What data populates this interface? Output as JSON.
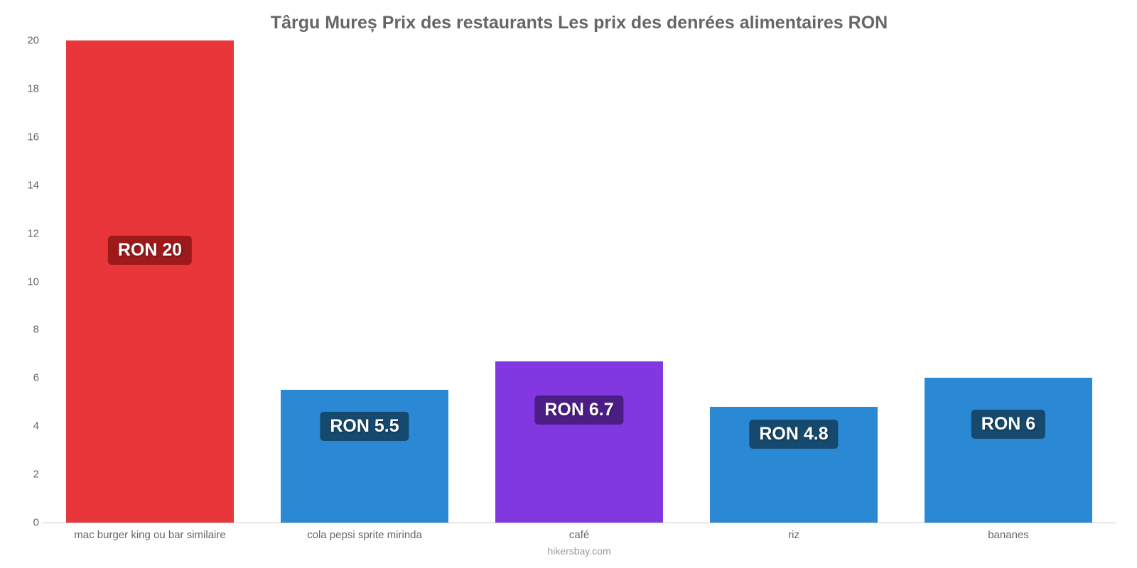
{
  "chart": {
    "type": "bar",
    "title": "Târgu Mureș Prix des restaurants Les prix des denrées alimentaires RON",
    "title_fontsize": 25,
    "title_color": "#666666",
    "ylim": [
      0,
      20
    ],
    "yticks": [
      0,
      2,
      4,
      6,
      8,
      10,
      12,
      14,
      16,
      18,
      20
    ],
    "ytick_fontsize": 15,
    "ytick_color": "#666666",
    "xlabel_fontsize": 15,
    "xlabel_color": "#666666",
    "background_color": "#ffffff",
    "axis_line_color": "#cccccc",
    "bar_width_pct": 78,
    "label_fontsize": 25,
    "label_text_color": "#ffffff",
    "label_radius": 5,
    "footer": "hikersbay.com",
    "footer_color": "#999999",
    "bars": [
      {
        "category": "mac burger king ou bar similaire",
        "value": 20,
        "color": "#e8363a",
        "label": "RON 20",
        "label_bg": "#9e1a1a",
        "label_y": 11.2
      },
      {
        "category": "cola pepsi sprite mirinda",
        "value": 5.5,
        "color": "#2a88d5",
        "label": "RON 5.5",
        "label_bg": "#16496e",
        "label_y": 3.9
      },
      {
        "category": "café",
        "value": 6.7,
        "color": "#8138e0",
        "label": "RON 6.7",
        "label_bg": "#4b1e85",
        "label_y": 4.6
      },
      {
        "category": "riz",
        "value": 4.8,
        "color": "#2a88d5",
        "label": "RON 4.8",
        "label_bg": "#16496e",
        "label_y": 3.6
      },
      {
        "category": "bananes",
        "value": 6,
        "color": "#2a88d5",
        "label": "RON 6",
        "label_bg": "#16496e",
        "label_y": 4.0
      }
    ]
  }
}
